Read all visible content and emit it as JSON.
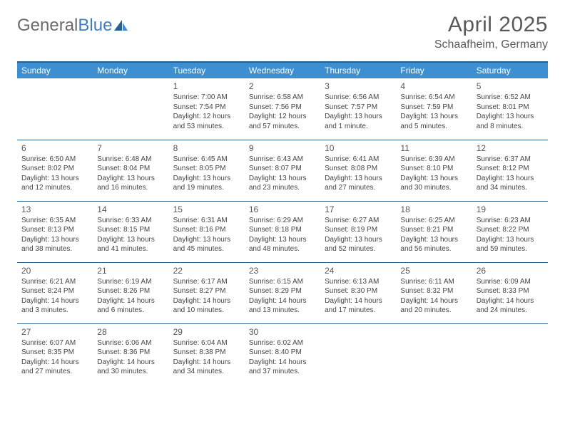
{
  "brand": {
    "part1": "General",
    "part2": "Blue"
  },
  "title": "April 2025",
  "location": "Schaafheim, Germany",
  "colors": {
    "header_bg": "#3d8fd1",
    "header_border": "#2b5f8c",
    "text": "#444444",
    "brand_gray": "#6a6a6a",
    "brand_blue": "#3d7cc9"
  },
  "weekdays": [
    "Sunday",
    "Monday",
    "Tuesday",
    "Wednesday",
    "Thursday",
    "Friday",
    "Saturday"
  ],
  "weeks": [
    [
      null,
      null,
      {
        "n": "1",
        "sr": "Sunrise: 7:00 AM",
        "ss": "Sunset: 7:54 PM",
        "dl": "Daylight: 12 hours and 53 minutes."
      },
      {
        "n": "2",
        "sr": "Sunrise: 6:58 AM",
        "ss": "Sunset: 7:56 PM",
        "dl": "Daylight: 12 hours and 57 minutes."
      },
      {
        "n": "3",
        "sr": "Sunrise: 6:56 AM",
        "ss": "Sunset: 7:57 PM",
        "dl": "Daylight: 13 hours and 1 minute."
      },
      {
        "n": "4",
        "sr": "Sunrise: 6:54 AM",
        "ss": "Sunset: 7:59 PM",
        "dl": "Daylight: 13 hours and 5 minutes."
      },
      {
        "n": "5",
        "sr": "Sunrise: 6:52 AM",
        "ss": "Sunset: 8:01 PM",
        "dl": "Daylight: 13 hours and 8 minutes."
      }
    ],
    [
      {
        "n": "6",
        "sr": "Sunrise: 6:50 AM",
        "ss": "Sunset: 8:02 PM",
        "dl": "Daylight: 13 hours and 12 minutes."
      },
      {
        "n": "7",
        "sr": "Sunrise: 6:48 AM",
        "ss": "Sunset: 8:04 PM",
        "dl": "Daylight: 13 hours and 16 minutes."
      },
      {
        "n": "8",
        "sr": "Sunrise: 6:45 AM",
        "ss": "Sunset: 8:05 PM",
        "dl": "Daylight: 13 hours and 19 minutes."
      },
      {
        "n": "9",
        "sr": "Sunrise: 6:43 AM",
        "ss": "Sunset: 8:07 PM",
        "dl": "Daylight: 13 hours and 23 minutes."
      },
      {
        "n": "10",
        "sr": "Sunrise: 6:41 AM",
        "ss": "Sunset: 8:08 PM",
        "dl": "Daylight: 13 hours and 27 minutes."
      },
      {
        "n": "11",
        "sr": "Sunrise: 6:39 AM",
        "ss": "Sunset: 8:10 PM",
        "dl": "Daylight: 13 hours and 30 minutes."
      },
      {
        "n": "12",
        "sr": "Sunrise: 6:37 AM",
        "ss": "Sunset: 8:12 PM",
        "dl": "Daylight: 13 hours and 34 minutes."
      }
    ],
    [
      {
        "n": "13",
        "sr": "Sunrise: 6:35 AM",
        "ss": "Sunset: 8:13 PM",
        "dl": "Daylight: 13 hours and 38 minutes."
      },
      {
        "n": "14",
        "sr": "Sunrise: 6:33 AM",
        "ss": "Sunset: 8:15 PM",
        "dl": "Daylight: 13 hours and 41 minutes."
      },
      {
        "n": "15",
        "sr": "Sunrise: 6:31 AM",
        "ss": "Sunset: 8:16 PM",
        "dl": "Daylight: 13 hours and 45 minutes."
      },
      {
        "n": "16",
        "sr": "Sunrise: 6:29 AM",
        "ss": "Sunset: 8:18 PM",
        "dl": "Daylight: 13 hours and 48 minutes."
      },
      {
        "n": "17",
        "sr": "Sunrise: 6:27 AM",
        "ss": "Sunset: 8:19 PM",
        "dl": "Daylight: 13 hours and 52 minutes."
      },
      {
        "n": "18",
        "sr": "Sunrise: 6:25 AM",
        "ss": "Sunset: 8:21 PM",
        "dl": "Daylight: 13 hours and 56 minutes."
      },
      {
        "n": "19",
        "sr": "Sunrise: 6:23 AM",
        "ss": "Sunset: 8:22 PM",
        "dl": "Daylight: 13 hours and 59 minutes."
      }
    ],
    [
      {
        "n": "20",
        "sr": "Sunrise: 6:21 AM",
        "ss": "Sunset: 8:24 PM",
        "dl": "Daylight: 14 hours and 3 minutes."
      },
      {
        "n": "21",
        "sr": "Sunrise: 6:19 AM",
        "ss": "Sunset: 8:26 PM",
        "dl": "Daylight: 14 hours and 6 minutes."
      },
      {
        "n": "22",
        "sr": "Sunrise: 6:17 AM",
        "ss": "Sunset: 8:27 PM",
        "dl": "Daylight: 14 hours and 10 minutes."
      },
      {
        "n": "23",
        "sr": "Sunrise: 6:15 AM",
        "ss": "Sunset: 8:29 PM",
        "dl": "Daylight: 14 hours and 13 minutes."
      },
      {
        "n": "24",
        "sr": "Sunrise: 6:13 AM",
        "ss": "Sunset: 8:30 PM",
        "dl": "Daylight: 14 hours and 17 minutes."
      },
      {
        "n": "25",
        "sr": "Sunrise: 6:11 AM",
        "ss": "Sunset: 8:32 PM",
        "dl": "Daylight: 14 hours and 20 minutes."
      },
      {
        "n": "26",
        "sr": "Sunrise: 6:09 AM",
        "ss": "Sunset: 8:33 PM",
        "dl": "Daylight: 14 hours and 24 minutes."
      }
    ],
    [
      {
        "n": "27",
        "sr": "Sunrise: 6:07 AM",
        "ss": "Sunset: 8:35 PM",
        "dl": "Daylight: 14 hours and 27 minutes."
      },
      {
        "n": "28",
        "sr": "Sunrise: 6:06 AM",
        "ss": "Sunset: 8:36 PM",
        "dl": "Daylight: 14 hours and 30 minutes."
      },
      {
        "n": "29",
        "sr": "Sunrise: 6:04 AM",
        "ss": "Sunset: 8:38 PM",
        "dl": "Daylight: 14 hours and 34 minutes."
      },
      {
        "n": "30",
        "sr": "Sunrise: 6:02 AM",
        "ss": "Sunset: 8:40 PM",
        "dl": "Daylight: 14 hours and 37 minutes."
      },
      null,
      null,
      null
    ]
  ]
}
